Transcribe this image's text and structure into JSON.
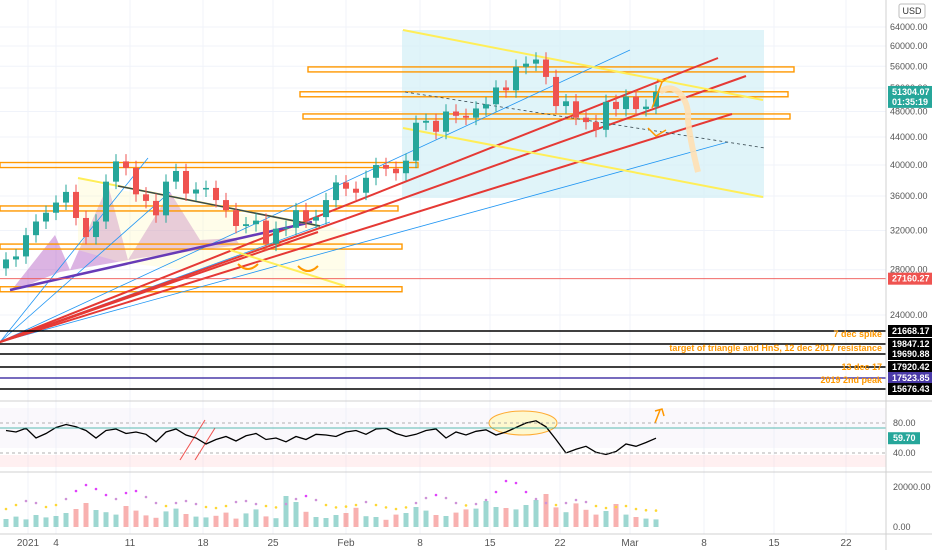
{
  "currency": "USD",
  "chart_data": [
    {
      "type": "candlestick",
      "title": "",
      "yaxis": {
        "scale": "log",
        "range": [
          15000,
          68000
        ],
        "ticks": [
          "64000.00",
          "60000.00",
          "56000.00",
          "52000.00",
          "48000.00",
          "44000.00",
          "40000.00",
          "36000.00",
          "32000.00",
          "28000.00",
          "24000.00"
        ]
      },
      "xaxis": {
        "ticks": [
          "2021",
          "4",
          "11",
          "18",
          "25",
          "Feb",
          "8",
          "15",
          "22",
          "Mar",
          "8",
          "15",
          "22"
        ]
      },
      "price_tags": [
        {
          "label": "51304.07",
          "price": 51304.07,
          "color": "#26a69a"
        },
        {
          "label": "01:35:19",
          "price": 49600,
          "color": "#26a69a"
        },
        {
          "label": "27160.27",
          "price": 27160.27,
          "color": "#ef5350"
        },
        {
          "label": "21668.17",
          "price": 21668.17,
          "color": "#000000"
        },
        {
          "label": "19847.12",
          "price": 19847.12,
          "color": "#000000"
        },
        {
          "label": "19690.88",
          "price": 19690.88,
          "color": "#000000"
        },
        {
          "label": "17920.42",
          "price": 17920.42,
          "color": "#000000"
        },
        {
          "label": "17523.85",
          "price": 17523.85,
          "color": "#4a3aa8"
        },
        {
          "label": "15676.43",
          "price": 15676.43,
          "color": "#000000"
        }
      ],
      "annotations": [
        {
          "text": "7 dec spike",
          "price": 20900
        },
        {
          "text": "target of triangle and HnS, 12 dec 2017 resistance",
          "price": 19100
        },
        {
          "text": "13 dec 17",
          "price": 17200
        },
        {
          "text": "2019 2nd peak",
          "price": 16250
        }
      ],
      "closes": [
        29000,
        29300,
        31500,
        33000,
        34000,
        35200,
        36500,
        33400,
        31300,
        33000,
        37800,
        40500,
        39600,
        36200,
        35400,
        33700,
        37800,
        39200,
        36300,
        36800,
        37000,
        35500,
        34300,
        32500,
        32700,
        33100,
        30600,
        32200,
        32300,
        34300,
        33100,
        33500,
        35500,
        37700,
        36900,
        36400,
        38300,
        40000,
        39500,
        38900,
        40600,
        46200,
        46500,
        44800,
        48000,
        47300,
        47000,
        48500,
        49200,
        52100,
        51600,
        55900,
        56500,
        57300,
        54000,
        48900,
        49700,
        47000,
        46300,
        45100,
        49600,
        48400,
        50500,
        48400,
        48800,
        51304
      ],
      "horizontal_levels": [
        {
          "price": 55400,
          "color": "#ff9800"
        },
        {
          "price": 50900,
          "color": "#ff9800"
        },
        {
          "price": 47200,
          "color": "#ff9800"
        },
        {
          "price": 40000,
          "color": "#ff9800"
        },
        {
          "price": 34500,
          "color": "#ff9800"
        },
        {
          "price": 30300,
          "color": "#ff9800"
        },
        {
          "price": 26200,
          "color": "#ff9800"
        }
      ]
    },
    {
      "type": "line",
      "title": "",
      "yaxis": {
        "range": [
          20,
          100
        ],
        "ticks": [
          "80.00",
          "40.00"
        ]
      },
      "current_label": "59.70",
      "current_value": 59.7,
      "values": [
        70,
        68,
        73,
        60,
        66,
        74,
        78,
        75,
        70,
        60,
        70,
        72,
        66,
        68,
        65,
        55,
        68,
        72,
        64,
        60,
        52,
        58,
        62,
        56,
        63,
        66,
        58,
        60,
        55,
        62,
        58,
        65,
        64,
        62,
        68,
        70,
        65,
        72,
        73,
        66,
        62,
        65,
        70,
        72,
        60,
        68,
        64,
        69,
        71,
        64,
        68,
        74,
        80,
        83,
        75,
        58,
        40,
        45,
        49,
        41,
        38,
        42,
        52,
        49,
        54,
        59.7
      ]
    },
    {
      "type": "bar",
      "title": "",
      "yaxis": {
        "ticks": [
          "20000.00",
          "0.00"
        ]
      },
      "values": [
        4000,
        5200,
        3800,
        6000,
        4800,
        5500,
        7000,
        9000,
        12000,
        8500,
        7400,
        6200,
        10500,
        8200,
        5800,
        4600,
        7800,
        9200,
        6500,
        5200,
        4800,
        5600,
        7200,
        4200,
        6800,
        8800,
        5300,
        4400,
        15500,
        12500,
        7600,
        5000,
        4500,
        6000,
        7000,
        9600,
        5400,
        5000,
        3600,
        6200,
        7000,
        10000,
        8200,
        6000,
        5500,
        7200,
        8800,
        9200,
        13000,
        10000,
        9500,
        8800,
        11000,
        13500,
        16500,
        9800,
        7400,
        11800,
        8600,
        6200,
        8000,
        11500,
        6200,
        5000,
        4200,
        3800
      ],
      "ma_values": [
        9000,
        11000,
        13000,
        12000,
        10000,
        11000,
        14000,
        18000,
        21000,
        19000,
        16000,
        14000,
        17000,
        18000,
        15000,
        12000,
        10500,
        12000,
        13000,
        11500,
        10000,
        9500,
        10500,
        12500,
        13000,
        11500,
        10500,
        9800,
        11500,
        14000,
        15500,
        13500,
        11000,
        9800,
        10200,
        11000,
        12500,
        11000,
        9800,
        9000,
        9800,
        12000,
        14500,
        16000,
        14500,
        12000,
        10800,
        11500,
        13500,
        17500,
        23000,
        22000,
        17500,
        14000,
        12000,
        11000,
        12000,
        13500,
        12500,
        10500,
        9500,
        10000,
        10500,
        9000,
        8400,
        8200
      ]
    }
  ]
}
